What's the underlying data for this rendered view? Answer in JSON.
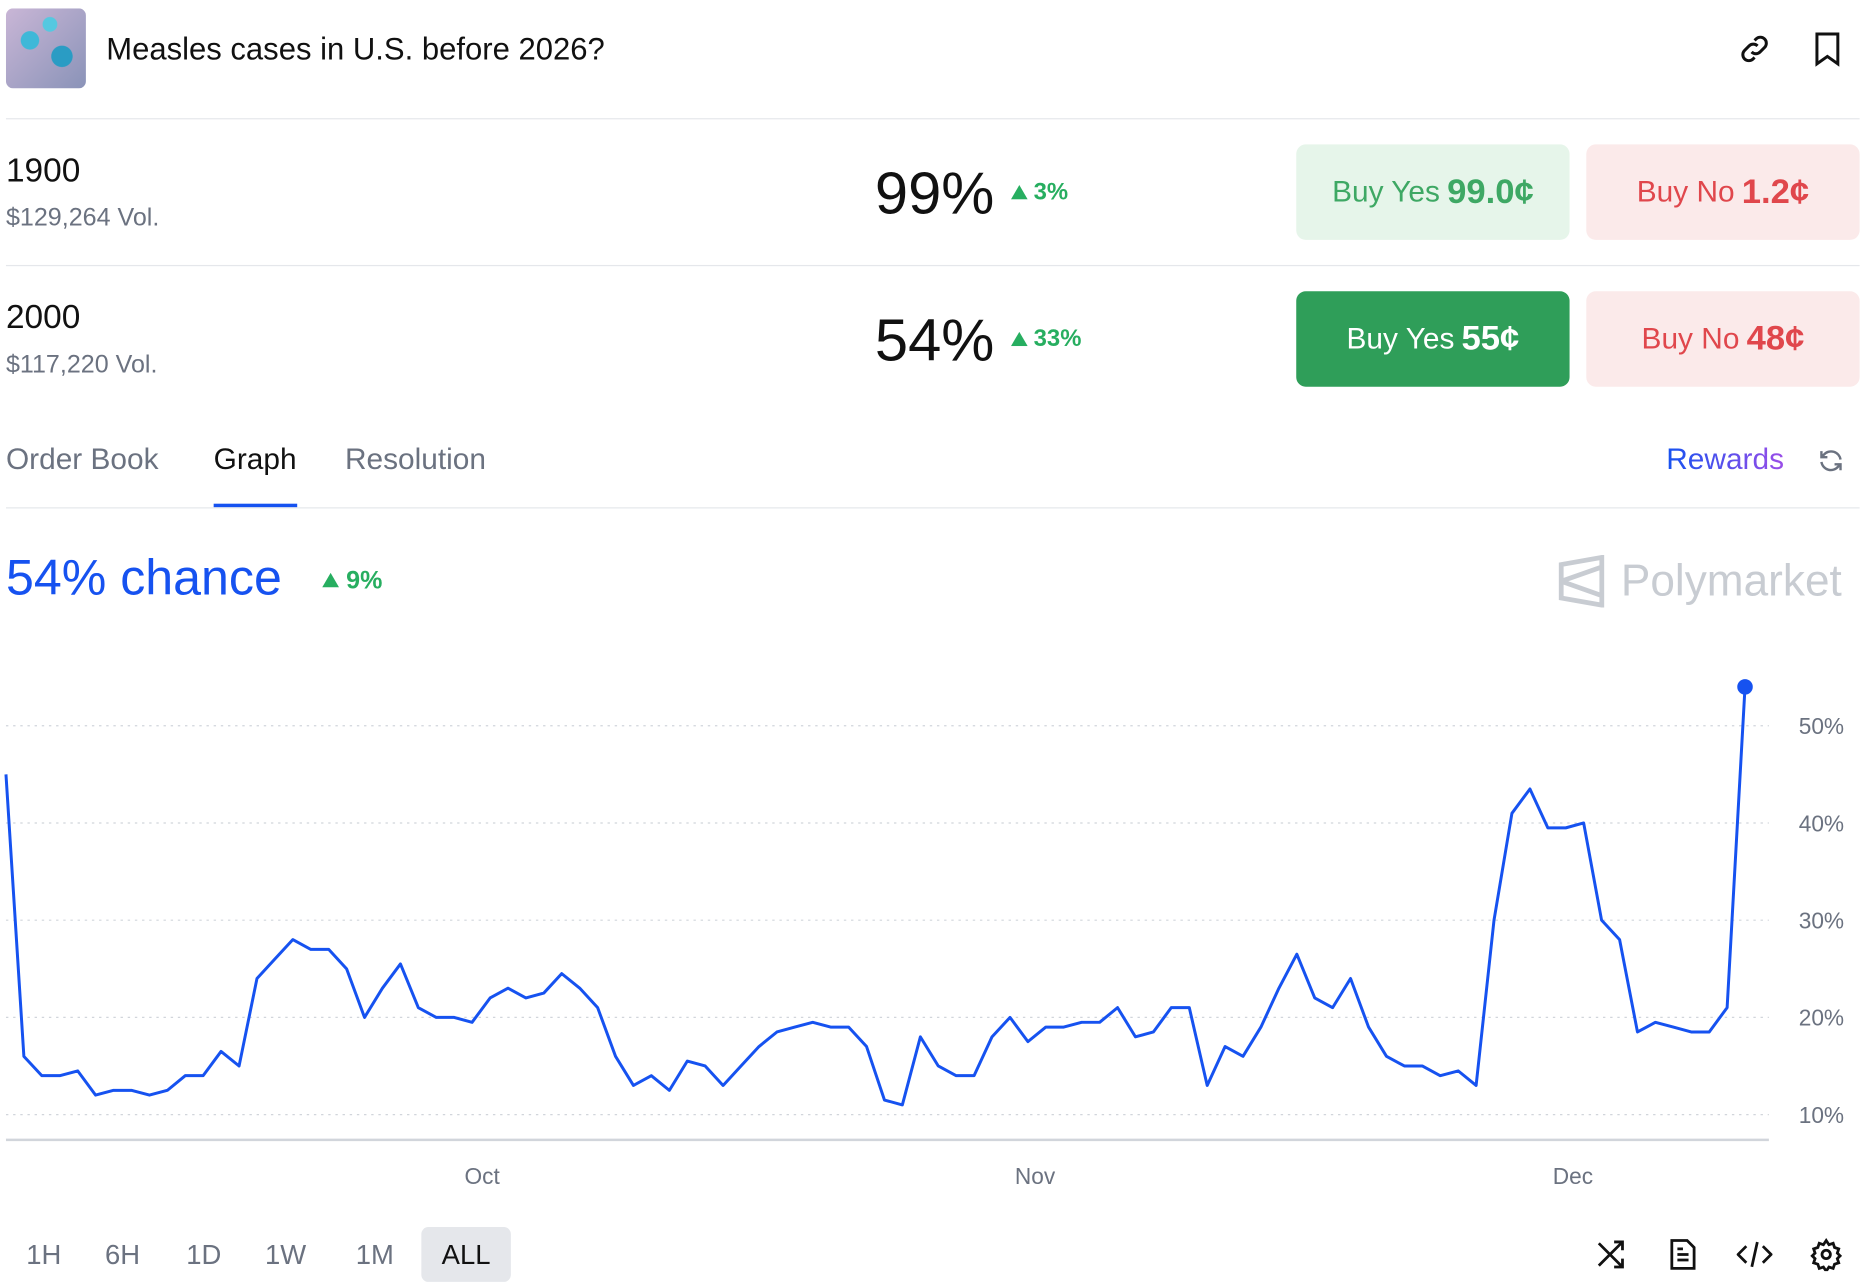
{
  "header": {
    "title": "Measles cases in U.S. before 2026?"
  },
  "outcomes": [
    {
      "name": "1900",
      "volume": "$129,264 Vol.",
      "chance": "99%",
      "change": "3%",
      "buy_yes": "Buy Yes",
      "yes_price": "99.0¢",
      "buy_no": "Buy No",
      "no_price": "1.2¢"
    },
    {
      "name": "2000",
      "volume": "$117,220 Vol.",
      "chance": "54%",
      "change": "33%",
      "buy_yes": "Buy Yes",
      "yes_price": "55¢",
      "buy_no": "Buy No",
      "no_price": "48¢"
    }
  ],
  "tabs": [
    "Order Book",
    "Graph",
    "Resolution"
  ],
  "rewards": "Rewards",
  "chance": "54% chance",
  "chance_change": "9%",
  "brand": "Polymarket",
  "chart_data": {
    "type": "line",
    "color": "#1652f0",
    "values": [
      45,
      16,
      14,
      14,
      14.5,
      12,
      12.5,
      12.5,
      12,
      12.5,
      14,
      14,
      16.5,
      15,
      24,
      26,
      28,
      27,
      27,
      25,
      20,
      23,
      25.5,
      21,
      20,
      20,
      19.5,
      22,
      23,
      22,
      22.5,
      24.5,
      23,
      21,
      16,
      13,
      14,
      12.5,
      15.5,
      15,
      13,
      15,
      17,
      18.5,
      19,
      19.5,
      19,
      19,
      17,
      11.5,
      11,
      18,
      15,
      14,
      14,
      18,
      20,
      17.5,
      19,
      19,
      19.5,
      19.5,
      21,
      18,
      18.5,
      21,
      21,
      13,
      17,
      16,
      19,
      23,
      26.5,
      22,
      21,
      24,
      19,
      16,
      15,
      15,
      14,
      14.5,
      13,
      30,
      41,
      43.5,
      39.5,
      39.5,
      40,
      30,
      28,
      18.5,
      19.5,
      19,
      18.5,
      18.5,
      21,
      54
    ],
    "xlim": [
      0,
      97
    ],
    "ylim": [
      7.4,
      55.9
    ],
    "xticks": [
      {
        "value": 26.56,
        "label": "Oct"
      },
      {
        "value": 57.4,
        "label": "Nov"
      },
      {
        "value": 87.4,
        "label": "Dec"
      }
    ],
    "yticks": [
      {
        "value": 10,
        "label": "10%"
      },
      {
        "value": 20,
        "label": "20%"
      },
      {
        "value": 30,
        "label": "30%"
      },
      {
        "value": 40,
        "label": "40%"
      },
      {
        "value": 50,
        "label": "50%"
      }
    ],
    "grid": true
  },
  "ranges": [
    "1H",
    "6H",
    "1D",
    "1W",
    "1M",
    "ALL"
  ]
}
